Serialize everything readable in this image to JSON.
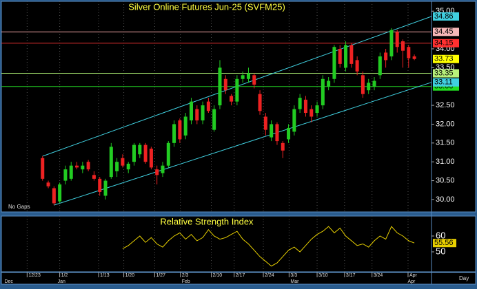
{
  "chart_data": [
    {
      "type": "candlestick",
      "title": "Silver Online Futures Jun-25 (SVFM25)",
      "note_label": "No Gaps",
      "up_color": "#22cc22",
      "down_color": "#ee2222",
      "grid": true,
      "xlim": [
        -7.2,
        68
      ],
      "ylim": [
        29.67,
        35.26
      ],
      "open": [
        31.1,
        30.45,
        30.3,
        29.95,
        30.5,
        30.55,
        30.9,
        30.8,
        31.0,
        30.65,
        30.55,
        30.1,
        30.6,
        30.75,
        31.1,
        30.8,
        31.0,
        31.2,
        31.45,
        31.35,
        30.8,
        30.7,
        30.9,
        31.5,
        32.1,
        31.7,
        32.1,
        32.4,
        32.1,
        32.6,
        31.85,
        32.5,
        33.2,
        32.75,
        32.6,
        33.2,
        33.2,
        33.3,
        32.8,
        32.2,
        31.65,
        32.0,
        31.5,
        31.6,
        31.8,
        32.4,
        32.65,
        32.4,
        32.3,
        32.5,
        33.0,
        33.2,
        34.0,
        33.5,
        34.1,
        33.7,
        33.3,
        32.9,
        33.0,
        33.3,
        33.9,
        33.8,
        34.45,
        34.2,
        34.05,
        33.8
      ],
      "high": [
        31.15,
        30.5,
        30.35,
        30.45,
        30.9,
        31.0,
        31.0,
        31.0,
        31.05,
        30.75,
        30.6,
        30.55,
        31.5,
        31.1,
        31.2,
        31.0,
        31.5,
        31.5,
        31.5,
        31.4,
        30.9,
        31.0,
        31.55,
        32.1,
        32.15,
        32.3,
        32.7,
        32.5,
        32.6,
        32.7,
        32.5,
        33.7,
        33.3,
        32.8,
        33.3,
        33.4,
        33.5,
        33.35,
        32.9,
        32.3,
        32.1,
        32.05,
        31.55,
        32.0,
        32.5,
        32.8,
        32.75,
        32.5,
        32.6,
        33.3,
        33.25,
        34.1,
        34.1,
        34.2,
        34.15,
        33.8,
        33.4,
        33.2,
        33.25,
        33.9,
        34.0,
        34.55,
        34.5,
        34.25,
        34.1,
        33.85
      ],
      "low": [
        30.5,
        30.3,
        29.85,
        29.9,
        30.4,
        30.5,
        30.8,
        30.7,
        30.75,
        30.5,
        30.1,
        30.0,
        30.55,
        30.6,
        30.85,
        30.7,
        30.9,
        31.1,
        30.95,
        30.8,
        30.4,
        30.6,
        30.85,
        31.4,
        31.5,
        31.6,
        32.0,
        32.0,
        32.0,
        32.3,
        31.8,
        32.4,
        32.8,
        32.5,
        32.5,
        33.1,
        33.1,
        32.95,
        32.25,
        31.7,
        31.55,
        31.45,
        31.1,
        31.5,
        31.7,
        32.3,
        32.2,
        32.05,
        32.2,
        32.4,
        32.9,
        33.1,
        33.5,
        33.4,
        33.5,
        33.3,
        32.7,
        32.8,
        32.9,
        33.2,
        33.5,
        33.7,
        33.9,
        33.5,
        33.5,
        33.7
      ],
      "close": [
        30.55,
        30.35,
        29.9,
        30.4,
        30.8,
        30.9,
        30.85,
        30.9,
        30.8,
        30.55,
        30.2,
        30.5,
        31.4,
        31.0,
        30.9,
        30.95,
        31.45,
        31.45,
        31.0,
        30.85,
        30.65,
        30.9,
        31.5,
        32.0,
        31.6,
        32.2,
        32.6,
        32.1,
        32.5,
        32.35,
        32.4,
        33.5,
        32.9,
        32.6,
        33.2,
        33.3,
        33.35,
        33.05,
        32.35,
        31.85,
        32.0,
        31.55,
        31.3,
        31.9,
        32.4,
        32.7,
        32.3,
        32.2,
        32.5,
        33.2,
        33.15,
        34.05,
        33.6,
        34.1,
        33.6,
        33.4,
        32.8,
        33.1,
        33.15,
        33.8,
        33.7,
        34.5,
        34.05,
        33.95,
        33.75,
        33.73
      ],
      "yticks": [
        {
          "value": 35,
          "label": "35.00"
        },
        {
          "value": 34,
          "label": "34.00"
        },
        {
          "value": 33.5,
          "label": "33.50"
        },
        {
          "value": 32.5,
          "label": "32.50"
        },
        {
          "value": 32,
          "label": "32.00"
        },
        {
          "value": 31.5,
          "label": "31.50"
        },
        {
          "value": 31,
          "label": "31.00"
        },
        {
          "value": 30.5,
          "label": "30.50"
        },
        {
          "value": 30,
          "label": "30.00"
        }
      ],
      "xticks": [
        {
          "value": -2.7,
          "label": "12/23"
        },
        {
          "value": 3.0,
          "label": "1/2"
        },
        {
          "value": 9.8,
          "label": "1/13"
        },
        {
          "value": 14.2,
          "label": "1/20"
        },
        {
          "value": 19.6,
          "label": "1/27"
        },
        {
          "value": 24.1,
          "label": "2/3"
        },
        {
          "value": 29.5,
          "label": "2/10"
        },
        {
          "value": 33.5,
          "label": "2/17"
        },
        {
          "value": 38.6,
          "label": "2/24"
        },
        {
          "value": 43.1,
          "label": "3/3"
        },
        {
          "value": 48.0,
          "label": "3/10"
        },
        {
          "value": 52.8,
          "label": "3/17"
        },
        {
          "value": 57.6,
          "label": "3/24"
        },
        {
          "value": 63.9,
          "label": "Apr"
        }
      ],
      "month_labels": [
        {
          "value": -6.9,
          "label": "Dec"
        },
        {
          "value": 2.4,
          "label": "Jan"
        },
        {
          "value": 24.1,
          "label": "Feb"
        },
        {
          "value": 43.1,
          "label": "Mar"
        },
        {
          "value": 63.6,
          "label": "Apr"
        }
      ],
      "period_label": "Day",
      "levels": [
        {
          "value": 34.45,
          "color": "#f5a8a8",
          "box": "#f7b8b8"
        },
        {
          "value": 34.15,
          "color": "#e83030",
          "box": "#ff3030"
        },
        {
          "value": 33.35,
          "color": "#a8e870",
          "box": "#b8f07a"
        },
        {
          "value": 33,
          "label": "33.00",
          "color": "#22cc22",
          "box": "#22dd22"
        }
      ],
      "channel": {
        "color": "#40d0e0",
        "upper": {
          "x": [
            0,
            68
          ],
          "values": [
            31.15,
            34.86
          ]
        },
        "lower": {
          "x": [
            2,
            68
          ],
          "values": [
            29.85,
            33.11
          ]
        }
      },
      "last_color": "#ffff00"
    },
    {
      "type": "line",
      "title": "Relative Strength Index",
      "color": "#e8d000",
      "ylim": [
        37.4,
        72.6
      ],
      "yticks": [
        60,
        50
      ],
      "values": [
        null,
        null,
        null,
        null,
        null,
        null,
        null,
        null,
        null,
        null,
        null,
        null,
        null,
        null,
        52,
        54,
        57,
        60,
        56,
        59,
        55,
        53,
        57,
        60,
        62,
        58,
        61,
        57,
        59,
        64,
        60,
        58,
        59,
        61,
        63,
        58,
        55,
        51,
        47,
        44,
        41,
        43,
        47,
        51,
        53,
        50,
        54,
        58,
        61,
        63,
        66,
        62,
        65,
        60,
        57,
        54,
        55,
        53,
        57,
        60,
        58,
        66,
        62,
        60,
        57,
        55.56
      ]
    }
  ]
}
